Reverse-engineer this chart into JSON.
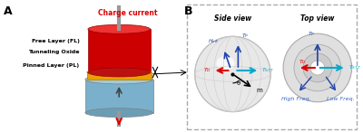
{
  "fig_width": 4.0,
  "fig_height": 1.46,
  "dpi": 100,
  "bg_color": "#ffffff",
  "panel_A_label": "A",
  "panel_B_label": "B",
  "side_view_label": "Side view",
  "top_view_label": "Top view",
  "charge_current_label": "Charge current",
  "free_layer_label": "Free Layer (FL)",
  "tunneling_oxide_label": "Tunneling Oxide",
  "pinned_layer_label": "Pinned Layer (PL)",
  "H_eff_label": "H_eff",
  "T_P_label": "T_P",
  "T_D_label": "T_D",
  "T_STT_label": "T_STT",
  "theta_label": "θ",
  "m_label": "m",
  "high_freq_label": "High Freq.",
  "low_freq_label": "Low Freq.",
  "free_layer_color": "#cc0000",
  "tunneling_oxide_color": "#e8a000",
  "pinned_layer_color": "#7ab0cc",
  "cylinder_body_color": "#8bbccc",
  "pin_color": "#999999",
  "red_arrow_color": "#dd0000",
  "blue_arrow_color": "#0099cc",
  "dark_blue_arrow_color": "#2244aa",
  "black_color": "#000000",
  "text_blue_color": "#3366cc",
  "box_border_color": "#aaaaaa"
}
